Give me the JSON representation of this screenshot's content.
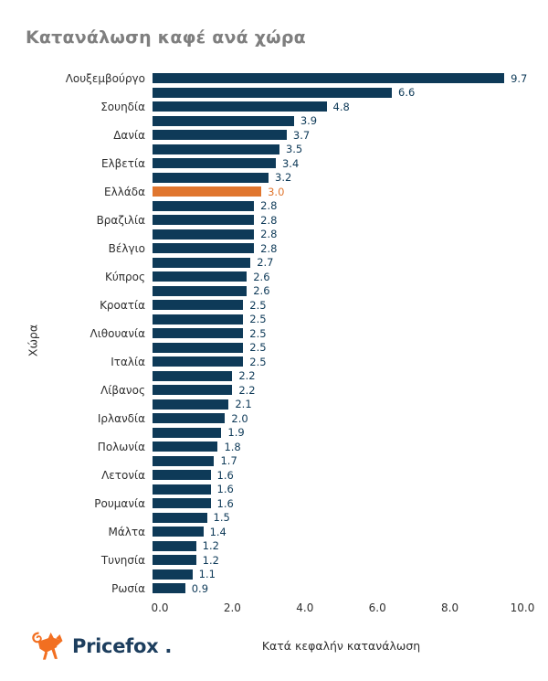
{
  "page": {
    "title": "Κατανάλωση καφέ ανά χώρα"
  },
  "chart_data": {
    "type": "bar",
    "orientation": "horizontal",
    "title": "Κατανάλωση καφέ ανά χώρα",
    "xlabel": "Κατά κεφαλήν κατανάλωση",
    "ylabel": "Χώρα",
    "xlim": [
      0,
      10
    ],
    "x_ticks": [
      "0.0",
      "2.0",
      "4.0",
      "6.0",
      "8.0",
      "10.0"
    ],
    "grid": false,
    "legend": false,
    "note": "only every second bar carries a visible country tick label; unlabeled bars shown with empty label",
    "highlight_index": 8,
    "bars": [
      {
        "label": "Λουξεμβούργο",
        "value": 9.7
      },
      {
        "label": "",
        "value": 6.6
      },
      {
        "label": "Σουηδία",
        "value": 4.8
      },
      {
        "label": "",
        "value": 3.9
      },
      {
        "label": "Δανία",
        "value": 3.7
      },
      {
        "label": "",
        "value": 3.5
      },
      {
        "label": "Ελβετία",
        "value": 3.4
      },
      {
        "label": "",
        "value": 3.2
      },
      {
        "label": "Ελλάδα",
        "value": 3.0
      },
      {
        "label": "",
        "value": 2.8
      },
      {
        "label": "Βραζιλία",
        "value": 2.8
      },
      {
        "label": "",
        "value": 2.8
      },
      {
        "label": "Βέλγιο",
        "value": 2.8
      },
      {
        "label": "",
        "value": 2.7
      },
      {
        "label": "Κύπρος",
        "value": 2.6
      },
      {
        "label": "",
        "value": 2.6
      },
      {
        "label": "Κροατία",
        "value": 2.5
      },
      {
        "label": "",
        "value": 2.5
      },
      {
        "label": "Λιθουανία",
        "value": 2.5
      },
      {
        "label": "",
        "value": 2.5
      },
      {
        "label": "Ιταλία",
        "value": 2.5
      },
      {
        "label": "",
        "value": 2.2
      },
      {
        "label": "Λίβανος",
        "value": 2.2
      },
      {
        "label": "",
        "value": 2.1
      },
      {
        "label": "Ιρλανδία",
        "value": 2.0
      },
      {
        "label": "",
        "value": 1.9
      },
      {
        "label": "Πολωνία",
        "value": 1.8
      },
      {
        "label": "",
        "value": 1.7
      },
      {
        "label": "Λετονία",
        "value": 1.6
      },
      {
        "label": "",
        "value": 1.6
      },
      {
        "label": "Ρουμανία",
        "value": 1.6
      },
      {
        "label": "",
        "value": 1.5
      },
      {
        "label": "Μάλτα",
        "value": 1.4
      },
      {
        "label": "",
        "value": 1.2
      },
      {
        "label": "Τυνησία",
        "value": 1.2
      },
      {
        "label": "",
        "value": 1.1
      },
      {
        "label": "Ρωσία",
        "value": 0.9
      }
    ]
  },
  "branding": {
    "logo_text": "Pricefox",
    "logo_dot": "."
  },
  "colors": {
    "bar": "#0e3a58",
    "highlight": "#e0762f",
    "title_gray": "#7f7f7f",
    "axis_text": "#303030",
    "logo_navy": "#1d3e5e",
    "logo_orange": "#f26f21"
  }
}
